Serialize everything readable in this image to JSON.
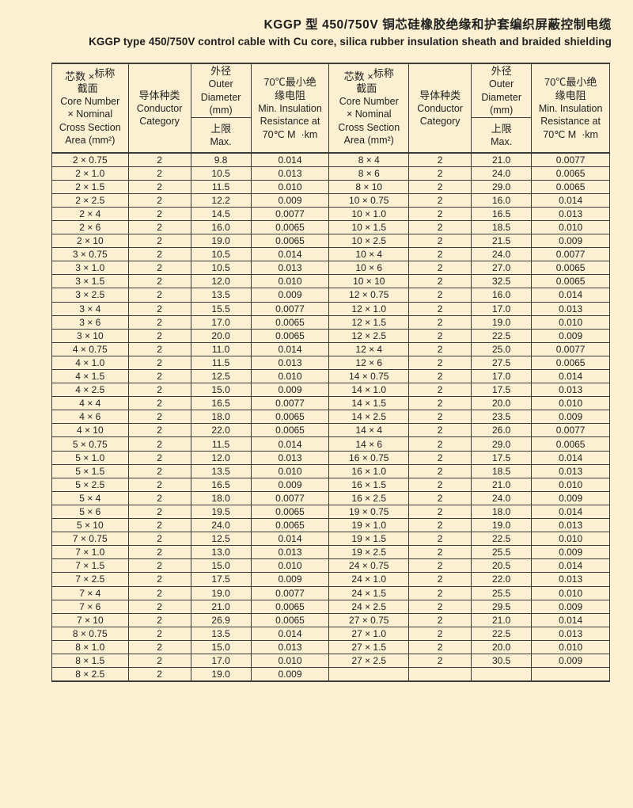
{
  "title": {
    "zh": "KGGP 型 450/750V 铜芯硅橡胶绝缘和护套编织屏蔽控制电缆",
    "en": "KGGP type 450/750V control cable with Cu core, silica rubber insulation sheath and braided shielding"
  },
  "colors": {
    "background": "#fcf0d2",
    "border": "#3b3b3b",
    "text": "#1e1e1e"
  },
  "table": {
    "header": {
      "spec_zh_a": "芯数 ×",
      "spec_zh_b": "标称",
      "spec_zh_c": "截面",
      "spec_en": [
        "Core Number",
        "× Nominal",
        "Cross Section",
        "Area (mm²)"
      ],
      "conductor_zh": "导体种类",
      "conductor_en": [
        "Conductor",
        "Category"
      ],
      "od_zh": "外径",
      "od_en": [
        "Outer",
        "Diameter",
        "(mm)"
      ],
      "od_max_zh": "上限",
      "od_max_en": "Max.",
      "ir_zh": [
        "70℃最小绝",
        "缘电阻"
      ],
      "ir_en": [
        "Min. Insulation",
        "Resistance at",
        "70℃ M  ·km"
      ]
    },
    "rows_left": [
      [
        "2 × 0.75",
        "2",
        "9.8",
        "0.014"
      ],
      [
        "2 × 1.0",
        "2",
        "10.5",
        "0.013"
      ],
      [
        "2 × 1.5",
        "2",
        "11.5",
        "0.010"
      ],
      [
        "2 × 2.5",
        "2",
        "12.2",
        "0.009"
      ],
      [
        "2 × 4",
        "2",
        "14.5",
        "0.0077"
      ],
      [
        "2 × 6",
        "2",
        "16.0",
        "0.0065"
      ],
      [
        "2 × 10",
        "2",
        "19.0",
        "0.0065"
      ],
      [
        "3 × 0.75",
        "2",
        "10.5",
        "0.014"
      ],
      [
        "3 × 1.0",
        "2",
        "10.5",
        "0.013"
      ],
      [
        "3 × 1.5",
        "2",
        "12.0",
        "0.010"
      ],
      [
        "3 × 2.5",
        "2",
        "13.5",
        "0.009"
      ],
      [
        "3 × 4",
        "2",
        "15.5",
        "0.0077"
      ],
      [
        "3 × 6",
        "2",
        "17.0",
        "0.0065"
      ],
      [
        "3 × 10",
        "2",
        "20.0",
        "0.0065"
      ],
      [
        "4 × 0.75",
        "2",
        "11.0",
        "0.014"
      ],
      [
        "4 × 1.0",
        "2",
        "11.5",
        "0.013"
      ],
      [
        "4 × 1.5",
        "2",
        "12.5",
        "0.010"
      ],
      [
        "4 × 2.5",
        "2",
        "15.0",
        "0.009"
      ],
      [
        "4 × 4",
        "2",
        "16.5",
        "0.0077"
      ],
      [
        "4 × 6",
        "2",
        "18.0",
        "0.0065"
      ],
      [
        "4 × 10",
        "2",
        "22.0",
        "0.0065"
      ],
      [
        "5 × 0.75",
        "2",
        "11.5",
        "0.014"
      ],
      [
        "5 × 1.0",
        "2",
        "12.0",
        "0.013"
      ],
      [
        "5 × 1.5",
        "2",
        "13.5",
        "0.010"
      ],
      [
        "5 × 2.5",
        "2",
        "16.5",
        "0.009"
      ],
      [
        "5 × 4",
        "2",
        "18.0",
        "0.0077"
      ],
      [
        "5 × 6",
        "2",
        "19.5",
        "0.0065"
      ],
      [
        "5 × 10",
        "2",
        "24.0",
        "0.0065"
      ],
      [
        "7 × 0.75",
        "2",
        "12.5",
        "0.014"
      ],
      [
        "7 × 1.0",
        "2",
        "13.0",
        "0.013"
      ],
      [
        "7 × 1.5",
        "2",
        "15.0",
        "0.010"
      ],
      [
        "7 × 2.5",
        "2",
        "17.5",
        "0.009"
      ],
      [
        "7 × 4",
        "2",
        "19.0",
        "0.0077"
      ],
      [
        "7 × 6",
        "2",
        "21.0",
        "0.0065"
      ],
      [
        "7 × 10",
        "2",
        "26.9",
        "0.0065"
      ],
      [
        "8 × 0.75",
        "2",
        "13.5",
        "0.014"
      ],
      [
        "8 × 1.0",
        "2",
        "15.0",
        "0.013"
      ],
      [
        "8 × 1.5",
        "2",
        "17.0",
        "0.010"
      ],
      [
        "8 × 2.5",
        "2",
        "19.0",
        "0.009"
      ]
    ],
    "rows_right": [
      [
        "8 × 4",
        "2",
        "21.0",
        "0.0077"
      ],
      [
        "8 × 6",
        "2",
        "24.0",
        "0.0065"
      ],
      [
        "8 × 10",
        "2",
        "29.0",
        "0.0065"
      ],
      [
        "10 × 0.75",
        "2",
        "16.0",
        "0.014"
      ],
      [
        "10 × 1.0",
        "2",
        "16.5",
        "0.013"
      ],
      [
        "10 × 1.5",
        "2",
        "18.5",
        "0.010"
      ],
      [
        "10 × 2.5",
        "2",
        "21.5",
        "0.009"
      ],
      [
        "10 × 4",
        "2",
        "24.0",
        "0.0077"
      ],
      [
        "10 × 6",
        "2",
        "27.0",
        "0.0065"
      ],
      [
        "10 × 10",
        "2",
        "32.5",
        "0.0065"
      ],
      [
        "12 × 0.75",
        "2",
        "16.0",
        "0.014"
      ],
      [
        "12 × 1.0",
        "2",
        "17.0",
        "0.013"
      ],
      [
        "12 × 1.5",
        "2",
        "19.0",
        "0.010"
      ],
      [
        "12 × 2.5",
        "2",
        "22.5",
        "0.009"
      ],
      [
        "12 × 4",
        "2",
        "25.0",
        "0.0077"
      ],
      [
        "12 × 6",
        "2",
        "27.5",
        "0.0065"
      ],
      [
        "14 × 0.75",
        "2",
        "17.0",
        "0.014"
      ],
      [
        "14 × 1.0",
        "2",
        "17.5",
        "0.013"
      ],
      [
        "14 × 1.5",
        "2",
        "20.0",
        "0.010"
      ],
      [
        "14 × 2.5",
        "2",
        "23.5",
        "0.009"
      ],
      [
        "14 × 4",
        "2",
        "26.0",
        "0.0077"
      ],
      [
        "14 × 6",
        "2",
        "29.0",
        "0.0065"
      ],
      [
        "16 × 0.75",
        "2",
        "17.5",
        "0.014"
      ],
      [
        "16 × 1.0",
        "2",
        "18.5",
        "0.013"
      ],
      [
        "16 × 1.5",
        "2",
        "21.0",
        "0.010"
      ],
      [
        "16 × 2.5",
        "2",
        "24.0",
        "0.009"
      ],
      [
        "19 × 0.75",
        "2",
        "18.0",
        "0.014"
      ],
      [
        "19 × 1.0",
        "2",
        "19.0",
        "0.013"
      ],
      [
        "19 × 1.5",
        "2",
        "22.5",
        "0.010"
      ],
      [
        "19 × 2.5",
        "2",
        "25.5",
        "0.009"
      ],
      [
        "24 × 0.75",
        "2",
        "20.5",
        "0.014"
      ],
      [
        "24 × 1.0",
        "2",
        "22.0",
        "0.013"
      ],
      [
        "24 × 1.5",
        "2",
        "25.5",
        "0.010"
      ],
      [
        "24 × 2.5",
        "2",
        "29.5",
        "0.009"
      ],
      [
        "27 × 0.75",
        "2",
        "21.0",
        "0.014"
      ],
      [
        "27 × 1.0",
        "2",
        "22.5",
        "0.013"
      ],
      [
        "27 × 1.5",
        "2",
        "20.0",
        "0.010"
      ],
      [
        "27 × 2.5",
        "2",
        "30.5",
        "0.009"
      ],
      [
        "",
        "",
        "",
        ""
      ]
    ]
  }
}
